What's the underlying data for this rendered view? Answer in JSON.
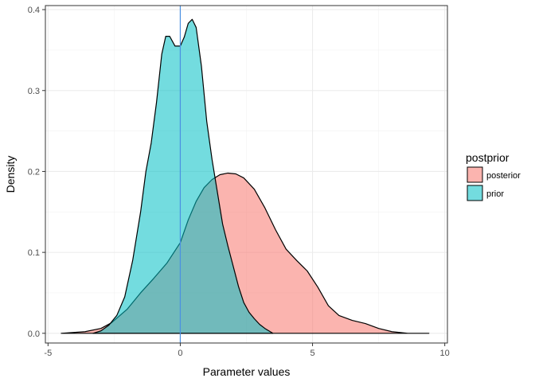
{
  "chart_data": {
    "type": "area",
    "title": "",
    "xlabel": "Parameter values",
    "ylabel": "Density",
    "xlim": [
      -5.1,
      10.1
    ],
    "ylim": [
      -0.012,
      0.405
    ],
    "x_ticks": [
      -5,
      0,
      5,
      10
    ],
    "x_tick_labels": [
      "-5",
      "0",
      "5",
      "10"
    ],
    "y_ticks": [
      0.0,
      0.1,
      0.2,
      0.3,
      0.4
    ],
    "y_tick_labels": [
      "0.0",
      "0.1",
      "0.2",
      "0.3",
      "0.4"
    ],
    "grid": true,
    "legend": {
      "title": "postprior",
      "position": "right"
    },
    "vline": {
      "x": 0,
      "color": "#4a90e2"
    },
    "series": [
      {
        "name": "posterior",
        "fill": "#f8766d",
        "points": [
          [
            -4.5,
            0.0
          ],
          [
            -3.6,
            0.002
          ],
          [
            -3.0,
            0.006
          ],
          [
            -2.6,
            0.013
          ],
          [
            -2.0,
            0.03
          ],
          [
            -1.5,
            0.05
          ],
          [
            -1.0,
            0.068
          ],
          [
            -0.5,
            0.087
          ],
          [
            0.0,
            0.112
          ],
          [
            0.3,
            0.14
          ],
          [
            0.6,
            0.163
          ],
          [
            0.9,
            0.18
          ],
          [
            1.2,
            0.19
          ],
          [
            1.5,
            0.196
          ],
          [
            1.8,
            0.198
          ],
          [
            2.1,
            0.197
          ],
          [
            2.4,
            0.192
          ],
          [
            2.8,
            0.178
          ],
          [
            3.2,
            0.155
          ],
          [
            3.6,
            0.128
          ],
          [
            4.0,
            0.104
          ],
          [
            4.4,
            0.09
          ],
          [
            4.8,
            0.077
          ],
          [
            5.2,
            0.057
          ],
          [
            5.6,
            0.034
          ],
          [
            6.0,
            0.022
          ],
          [
            6.5,
            0.016
          ],
          [
            7.0,
            0.012
          ],
          [
            7.5,
            0.006
          ],
          [
            8.0,
            0.002
          ],
          [
            8.6,
            0.0
          ],
          [
            9.4,
            0.0
          ]
        ]
      },
      {
        "name": "prior",
        "fill": "#00bfc4",
        "points": [
          [
            -3.3,
            0.0
          ],
          [
            -3.0,
            0.003
          ],
          [
            -2.7,
            0.01
          ],
          [
            -2.4,
            0.022
          ],
          [
            -2.1,
            0.045
          ],
          [
            -1.8,
            0.09
          ],
          [
            -1.5,
            0.15
          ],
          [
            -1.3,
            0.2
          ],
          [
            -1.1,
            0.235
          ],
          [
            -0.9,
            0.285
          ],
          [
            -0.7,
            0.345
          ],
          [
            -0.55,
            0.367
          ],
          [
            -0.4,
            0.367
          ],
          [
            -0.2,
            0.355
          ],
          [
            0.0,
            0.355
          ],
          [
            0.15,
            0.366
          ],
          [
            0.3,
            0.383
          ],
          [
            0.45,
            0.388
          ],
          [
            0.6,
            0.378
          ],
          [
            0.8,
            0.33
          ],
          [
            1.0,
            0.262
          ],
          [
            1.2,
            0.215
          ],
          [
            1.4,
            0.175
          ],
          [
            1.6,
            0.135
          ],
          [
            1.8,
            0.108
          ],
          [
            2.0,
            0.083
          ],
          [
            2.2,
            0.058
          ],
          [
            2.4,
            0.038
          ],
          [
            2.6,
            0.026
          ],
          [
            2.8,
            0.018
          ],
          [
            3.0,
            0.011
          ],
          [
            3.2,
            0.006
          ],
          [
            3.5,
            0.0
          ]
        ]
      }
    ]
  }
}
